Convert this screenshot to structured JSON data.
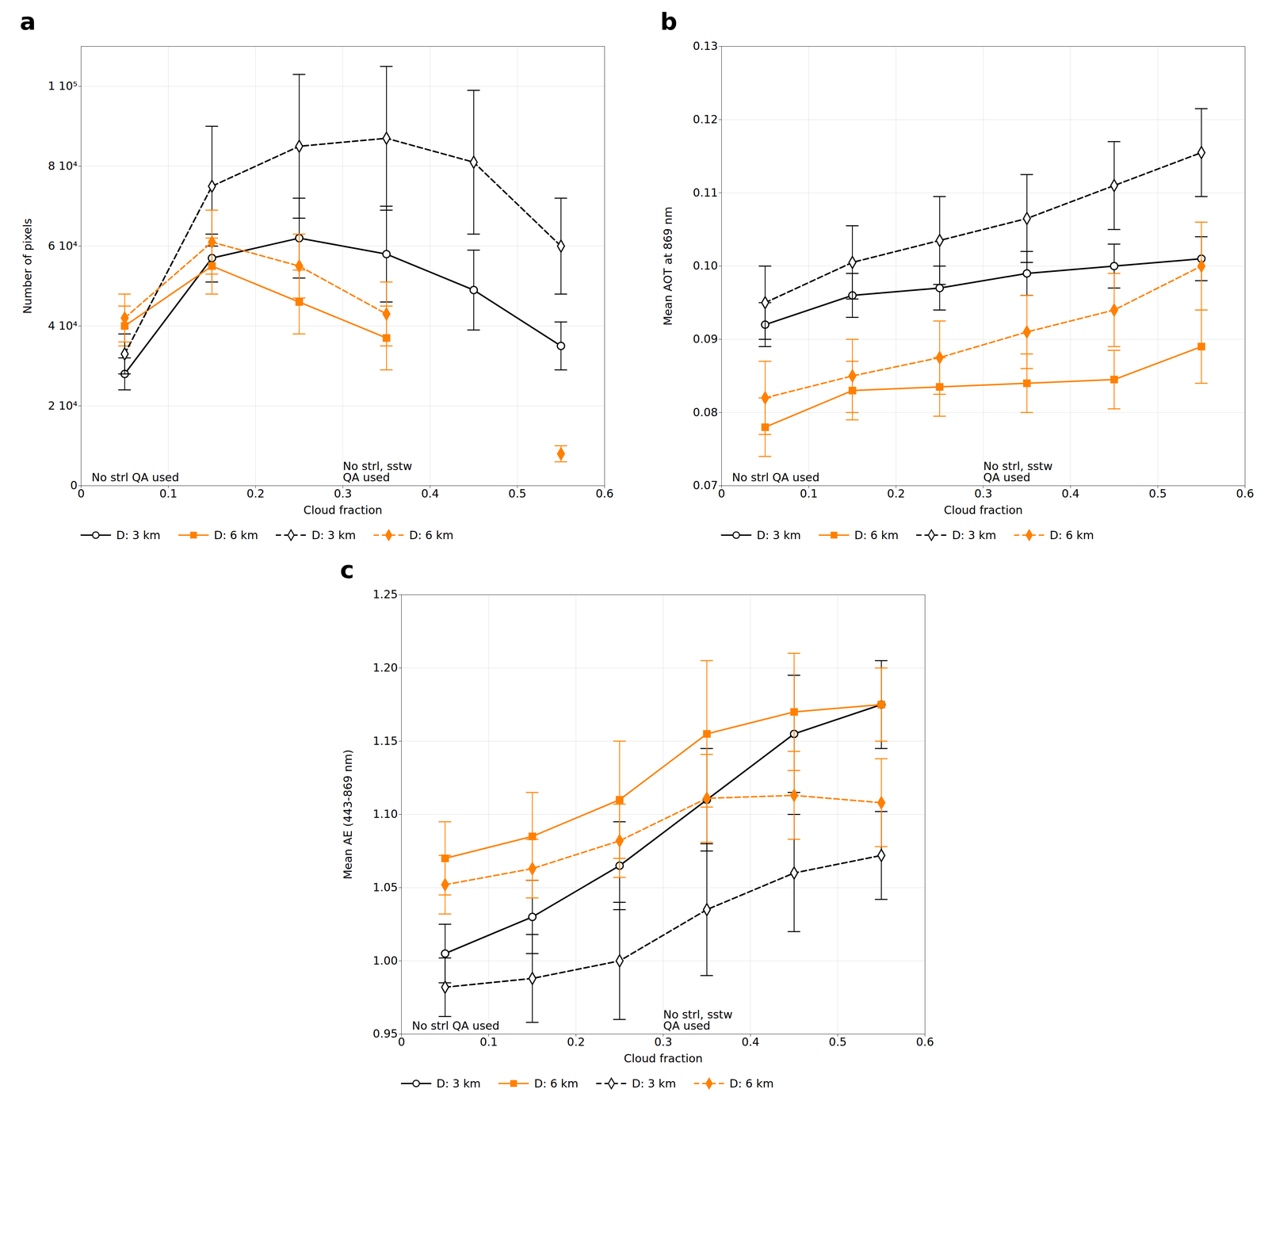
{
  "chart_data": [
    {
      "type": "line",
      "title": "a",
      "xlabel": "Cloud fraction",
      "ylabel": "Number of pixels",
      "x": [
        0.05,
        0.15,
        0.25,
        0.35,
        0.45,
        0.55
      ],
      "xlim": [
        0,
        0.6
      ],
      "xticks": [
        0,
        0.1,
        0.2,
        0.3,
        0.4,
        0.5,
        0.6
      ],
      "ylim": [
        0,
        110000
      ],
      "yticks": [
        0,
        {
          "value": 20000,
          "label": "2 10⁴"
        },
        {
          "value": 40000,
          "label": "4 10⁴"
        },
        {
          "value": 60000,
          "label": "6 10⁴"
        },
        {
          "value": 80000,
          "label": "8 10⁴"
        },
        {
          "value": 100000,
          "label": "1 10⁵"
        }
      ],
      "grid": true,
      "legend": "lower left",
      "annotations": [
        "No strl QA used",
        "No strl, sstw\nQA used"
      ],
      "series": [
        {
          "name": "D: 3 km",
          "color": "#000000",
          "line_style": "solid",
          "marker": "open circle",
          "values": [
            28000,
            57000,
            62000,
            58000,
            49000,
            35000
          ],
          "yerr": [
            4000,
            6000,
            10000,
            12000,
            10000,
            6000
          ]
        },
        {
          "name": "D: 6 km",
          "color": "#FF8000",
          "line_style": "solid",
          "marker": "square",
          "values": [
            40000,
            55000,
            46000,
            37000,
            null,
            null
          ],
          "yerr": [
            5000,
            7000,
            8000,
            8000,
            null,
            null
          ]
        },
        {
          "name": "D: 3 km",
          "color": "#000000",
          "line_style": "dashed",
          "marker": "open diamond",
          "values": [
            33000,
            75000,
            85000,
            87000,
            81000,
            60000
          ],
          "yerr": [
            5000,
            15000,
            18000,
            18000,
            18000,
            12000
          ]
        },
        {
          "name": "D: 6 km",
          "color": "#FF8000",
          "line_style": "dashed",
          "marker": "diamond",
          "values": [
            42000,
            61000,
            55000,
            43000,
            null,
            8000
          ],
          "yerr": [
            6000,
            8000,
            8000,
            8000,
            null,
            2000
          ]
        }
      ]
    },
    {
      "type": "line",
      "title": "b",
      "xlabel": "Cloud fraction",
      "ylabel": "Mean AOT at 869 nm",
      "x": [
        0.05,
        0.15,
        0.25,
        0.35,
        0.45,
        0.55
      ],
      "xlim": [
        0,
        0.6
      ],
      "xticks": [
        0,
        0.1,
        0.2,
        0.3,
        0.4,
        0.5,
        0.6
      ],
      "ylim": [
        0.07,
        0.13
      ],
      "yticks": [
        0.07,
        0.08,
        0.09,
        {
          "value": 0.1,
          "label": "0.10"
        },
        0.11,
        0.12,
        0.13
      ],
      "grid": true,
      "legend": "lower left",
      "annotations": [
        "No strl QA used",
        "No strl, sstw\nQA used"
      ],
      "series": [
        {
          "name": "D: 3 km",
          "color": "#000000",
          "line_style": "solid",
          "marker": "open circle",
          "values": [
            0.092,
            0.096,
            0.097,
            0.099,
            0.1,
            0.101
          ],
          "yerr": [
            0.003,
            0.003,
            0.003,
            0.003,
            0.003,
            0.003
          ]
        },
        {
          "name": "D: 6 km",
          "color": "#FF8000",
          "line_style": "solid",
          "marker": "square",
          "values": [
            0.078,
            0.083,
            0.0835,
            0.084,
            0.0845,
            0.089
          ],
          "yerr": [
            0.004,
            0.004,
            0.004,
            0.004,
            0.004,
            0.005
          ]
        },
        {
          "name": "D: 3 km",
          "color": "#000000",
          "line_style": "dashed",
          "marker": "open diamond",
          "values": [
            0.095,
            0.1005,
            0.1035,
            0.1065,
            0.111,
            0.1155
          ],
          "yerr": [
            0.005,
            0.005,
            0.006,
            0.006,
            0.006,
            0.006
          ]
        },
        {
          "name": "D: 6 km",
          "color": "#FF8000",
          "line_style": "dashed",
          "marker": "diamond",
          "values": [
            0.082,
            0.085,
            0.0875,
            0.091,
            0.094,
            0.1
          ],
          "yerr": [
            0.005,
            0.005,
            0.005,
            0.005,
            0.005,
            0.006
          ]
        }
      ]
    },
    {
      "type": "line",
      "title": "c",
      "xlabel": "Cloud fraction",
      "ylabel": "Mean AE (443-869 nm)",
      "x": [
        0.05,
        0.15,
        0.25,
        0.35,
        0.45,
        0.55
      ],
      "xlim": [
        0,
        0.6
      ],
      "xticks": [
        0,
        0.1,
        0.2,
        0.3,
        0.4,
        0.5,
        0.6
      ],
      "ylim": [
        0.95,
        1.25
      ],
      "yticks": [
        0.95,
        {
          "value": 1.0,
          "label": "1.00"
        },
        1.05,
        {
          "value": 1.1,
          "label": "1.10"
        },
        1.15,
        {
          "value": 1.2,
          "label": "1.20"
        },
        1.25
      ],
      "grid": true,
      "legend": "lower left",
      "annotations": [
        "No strl QA used",
        "No strl, sstw\nQA used"
      ],
      "series": [
        {
          "name": "D: 3 km",
          "color": "#000000",
          "line_style": "solid",
          "marker": "open circle",
          "values": [
            1.005,
            1.03,
            1.065,
            1.11,
            1.155,
            1.175
          ],
          "yerr": [
            0.02,
            0.025,
            0.03,
            0.035,
            0.04,
            0.03
          ]
        },
        {
          "name": "D: 6 km",
          "color": "#FF8000",
          "line_style": "solid",
          "marker": "square",
          "values": [
            1.07,
            1.085,
            1.11,
            1.155,
            1.17,
            1.175
          ],
          "yerr": [
            0.025,
            0.03,
            0.04,
            0.05,
            0.04,
            0.025
          ]
        },
        {
          "name": "D: 3 km",
          "color": "#000000",
          "line_style": "dashed",
          "marker": "open diamond",
          "values": [
            0.982,
            0.988,
            1.0,
            1.035,
            1.06,
            1.072
          ],
          "yerr": [
            0.02,
            0.03,
            0.04,
            0.045,
            0.04,
            0.03
          ]
        },
        {
          "name": "D: 6 km",
          "color": "#FF8000",
          "line_style": "dashed",
          "marker": "diamond",
          "values": [
            1.052,
            1.063,
            1.082,
            1.111,
            1.113,
            1.108
          ],
          "yerr": [
            0.02,
            0.02,
            0.025,
            0.03,
            0.03,
            0.03
          ]
        }
      ]
    }
  ]
}
